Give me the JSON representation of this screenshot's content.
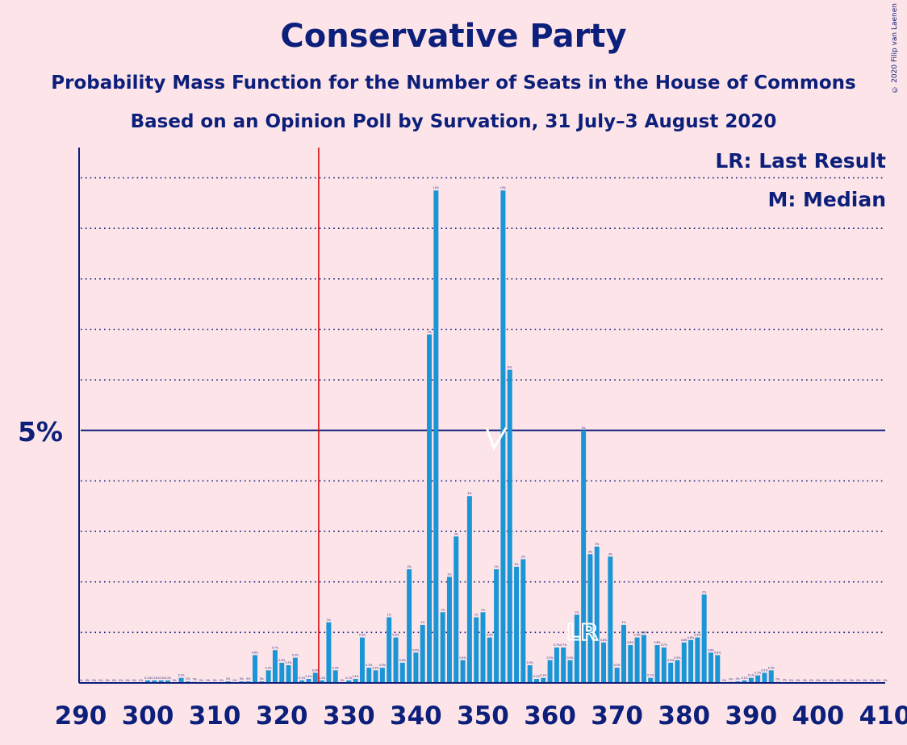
{
  "title": "Conservative Party",
  "subtitle": "Probability Mass Function for the Number of Seats in the House of Commons",
  "subtitle2": "Based on an Opinion Poll by Survation, 31 July–3 August 2020",
  "copyright": "© 2020 Filip van Laenen",
  "legend": {
    "last_result": "LR: Last Result",
    "median": "M: Median"
  },
  "colors": {
    "bar": "#1a96d6",
    "axis": "#0c1f7a",
    "last_result_line": "#d00000",
    "background": "#fde4e8"
  },
  "chart_data": {
    "type": "bar",
    "xlim": [
      290,
      410
    ],
    "ylim": [
      0,
      10.6
    ],
    "x_ticks": [
      290,
      300,
      310,
      320,
      330,
      340,
      350,
      360,
      370,
      380,
      390,
      400,
      410
    ],
    "y_tick_label": "5%",
    "y_tick_value": 5,
    "grid_dotted_every": 1,
    "last_result": 326,
    "last_result_label": "LR",
    "median": 352,
    "median_label": "M",
    "x": [
      290,
      291,
      292,
      293,
      294,
      295,
      296,
      297,
      298,
      299,
      300,
      301,
      302,
      303,
      304,
      305,
      306,
      307,
      308,
      309,
      310,
      311,
      312,
      313,
      314,
      315,
      316,
      317,
      318,
      319,
      320,
      321,
      322,
      323,
      324,
      325,
      326,
      327,
      328,
      329,
      330,
      331,
      332,
      333,
      334,
      335,
      336,
      337,
      338,
      339,
      340,
      341,
      342,
      343,
      344,
      345,
      346,
      347,
      348,
      349,
      350,
      351,
      352,
      353,
      354,
      355,
      356,
      357,
      358,
      359,
      360,
      361,
      362,
      363,
      364,
      365,
      366,
      367,
      368,
      369,
      370,
      371,
      372,
      373,
      374,
      375,
      376,
      377,
      378,
      379,
      380,
      381,
      382,
      383,
      384,
      385,
      386,
      387,
      388,
      389,
      390,
      391,
      392,
      393,
      394,
      395,
      396,
      397,
      398,
      399,
      400,
      401,
      402,
      403,
      404,
      405,
      406,
      407,
      408,
      409,
      410
    ],
    "values": [
      0,
      0,
      0,
      0,
      0,
      0,
      0,
      0,
      0,
      0,
      0.05,
      0.05,
      0.05,
      0.05,
      0,
      0.1,
      0.03,
      0.02,
      0,
      0,
      0,
      0,
      0.03,
      0,
      0.03,
      0.03,
      0.55,
      0.03,
      0.25,
      0.65,
      0.4,
      0.35,
      0.5,
      0.05,
      0.08,
      0.2,
      0.05,
      1.2,
      0.25,
      0,
      0.05,
      0.08,
      0.9,
      0.3,
      0.25,
      0.3,
      1.3,
      0.9,
      0.4,
      2.25,
      0.6,
      1.15,
      6.9,
      9.75,
      1.4,
      2.1,
      2.9,
      0.45,
      3.7,
      1.3,
      1.4,
      0.9,
      2.25,
      9.75,
      6.2,
      2.3,
      2.45,
      0.35,
      0.08,
      0.1,
      0.45,
      0.7,
      0.7,
      0.45,
      1.35,
      5.0,
      2.55,
      2.7,
      0.8,
      2.5,
      0.3,
      1.15,
      0.75,
      0.9,
      0.95,
      0.1,
      0.75,
      0.7,
      0.4,
      0.45,
      0.8,
      0.85,
      0.9,
      1.75,
      0.6,
      0.55,
      0,
      0.02,
      0.03,
      0.05,
      0.1,
      0.15,
      0.2,
      0.25,
      0.02,
      0.01,
      0,
      0,
      0,
      0,
      0,
      0,
      0,
      0,
      0,
      0,
      0,
      0,
      0,
      0,
      0
    ]
  }
}
